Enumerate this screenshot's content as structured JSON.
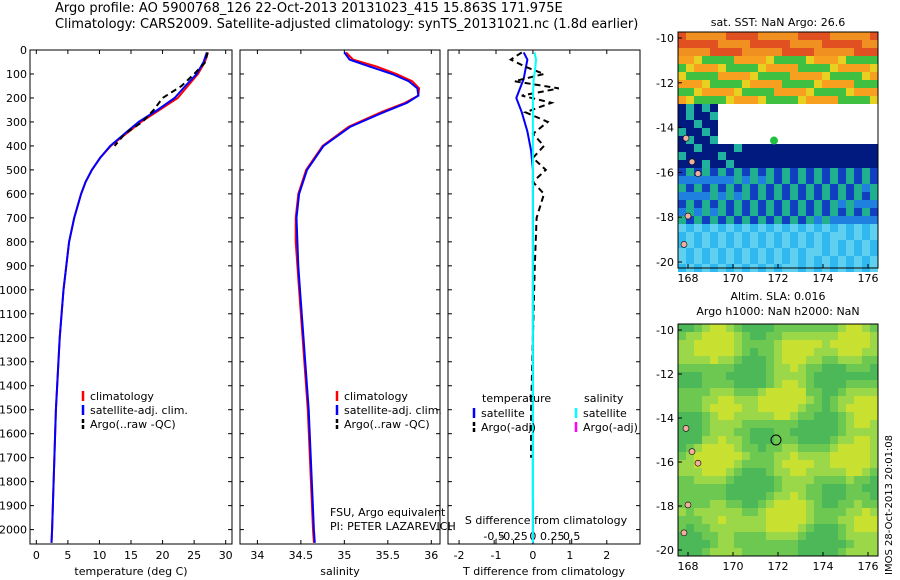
{
  "header": {
    "line1": "Argo profile: AO 5900768_126 22-Oct-2013 20131023_415 15.863S 171.975E",
    "line2": "Climatology: CARS2009. Satellite-adjusted climatology: synTS_20131021.nc (1.8d earlier)"
  },
  "colors": {
    "climatology": "#ff0000",
    "satellite": "#0000ff",
    "argo": "#000000",
    "sal_satellite": "#00ffff",
    "sal_argo": "#ff00ff"
  },
  "depth_axis": {
    "ticks": [
      0,
      100,
      200,
      300,
      400,
      500,
      600,
      700,
      800,
      900,
      1000,
      1100,
      1200,
      1300,
      1400,
      1500,
      1600,
      1700,
      1800,
      1900,
      2000
    ],
    "ylim": [
      0,
      2060
    ]
  },
  "chart_data": [
    {
      "type": "line",
      "xlabel": "temperature (deg C)",
      "xlim": [
        -1,
        31
      ],
      "xticks": [
        0,
        5,
        10,
        15,
        20,
        25,
        30
      ],
      "legend": {
        "position": "lower-left",
        "entries": [
          "climatology",
          "satellite-adj. clim.",
          "Argo(..raw -QC)"
        ]
      },
      "series": [
        {
          "name": "climatology",
          "color": "#ff0000",
          "depth": [
            10,
            50,
            100,
            150,
            200,
            250,
            300,
            400,
            450,
            500,
            550,
            600,
            700,
            800,
            1000,
            1200,
            1500,
            2000,
            2055
          ],
          "values": [
            27.2,
            26.7,
            25.6,
            24.0,
            22.4,
            19.5,
            16.6,
            11.8,
            10.1,
            8.8,
            7.8,
            7.1,
            6.0,
            5.2,
            4.3,
            3.7,
            3.1,
            2.5,
            2.4
          ]
        },
        {
          "name": "satellite-adj. clim.",
          "color": "#0000ff",
          "depth": [
            10,
            50,
            100,
            150,
            200,
            250,
            300,
            400,
            450,
            500,
            550,
            600,
            700,
            800,
            1000,
            1200,
            1500,
            2000,
            2055
          ],
          "values": [
            27.0,
            26.5,
            25.4,
            23.6,
            21.9,
            19.2,
            16.2,
            11.7,
            10.1,
            8.8,
            7.8,
            7.1,
            6.0,
            5.2,
            4.3,
            3.7,
            3.1,
            2.5,
            2.4
          ]
        },
        {
          "name": "Argo(..raw -QC)",
          "color": "#000000",
          "dash": true,
          "depth": [
            10,
            50,
            100,
            150,
            200,
            250,
            300,
            350,
            400
          ],
          "values": [
            27.1,
            26.8,
            25.0,
            23.0,
            20.0,
            18.6,
            16.8,
            14.0,
            12.4
          ]
        }
      ]
    },
    {
      "type": "line",
      "xlabel": "salinity",
      "xlim": [
        33.8,
        36.1
      ],
      "xticks": [
        34,
        34.5,
        35,
        35.5,
        36
      ],
      "xticklabels": [
        "34",
        "34.5",
        "35",
        "35.5",
        "36"
      ],
      "legend": {
        "position": "lower-left",
        "entries": [
          "climatology",
          "satellite-adj. clim.",
          "Argo(..raw -QC)"
        ]
      },
      "annotation": [
        "FSU, Argo equivalent",
        "PI: PETER LAZAREVICH"
      ],
      "series": [
        {
          "name": "climatology",
          "color": "#ff0000",
          "depth": [
            10,
            40,
            70,
            100,
            130,
            160,
            190,
            220,
            260,
            320,
            400,
            500,
            600,
            700,
            800,
            900,
            1000,
            1200,
            1500,
            2000,
            2055
          ],
          "values": [
            35.02,
            35.1,
            35.38,
            35.6,
            35.78,
            35.86,
            35.85,
            35.7,
            35.42,
            35.05,
            34.75,
            34.56,
            34.47,
            34.44,
            34.44,
            34.46,
            34.48,
            34.52,
            34.58,
            34.64,
            34.65
          ]
        },
        {
          "name": "satellite-adj. clim.",
          "color": "#0000ff",
          "depth": [
            10,
            40,
            70,
            100,
            130,
            160,
            190,
            220,
            260,
            320,
            400,
            500,
            600,
            700,
            800,
            900,
            1000,
            1200,
            1500,
            2000,
            2055
          ],
          "values": [
            35.0,
            35.06,
            35.3,
            35.55,
            35.74,
            35.84,
            35.85,
            35.72,
            35.45,
            35.07,
            34.76,
            34.57,
            34.48,
            34.45,
            34.46,
            34.47,
            34.49,
            34.53,
            34.59,
            34.65,
            34.66
          ]
        }
      ]
    },
    {
      "type": "line",
      "xlabel": "T difference from climatology",
      "xlabel2": "S difference from climatology",
      "xlim": [
        -2.3,
        2.9
      ],
      "xticks": [
        -2,
        -1,
        0,
        1,
        2
      ],
      "xticklabels": [
        "-2",
        "-1",
        "0",
        "1",
        "2"
      ],
      "sticks": [
        -0.5,
        -0.25,
        0,
        0.25,
        0.5
      ],
      "sticklabels": [
        "-0.5",
        "-0.25",
        "0",
        "0.25",
        "0.5"
      ],
      "legend": {
        "position": "lower-left",
        "temperature": {
          "title": "temperature",
          "entries": [
            "satellite",
            "Argo(-adj)"
          ]
        },
        "salinity": {
          "title": "salinity",
          "entries": [
            "satellite",
            "Argo(-adj)"
          ]
        }
      },
      "series": [
        {
          "name": "satellite",
          "group": "temperature",
          "color": "#0000ff",
          "depth": [
            10,
            40,
            80,
            120,
            160,
            200,
            260,
            340,
            420,
            500,
            600,
            800,
            1000,
            1500,
            2000,
            2055
          ],
          "values": [
            -0.25,
            -0.15,
            -0.2,
            -0.25,
            -0.35,
            -0.45,
            -0.3,
            -0.15,
            -0.05,
            0,
            0,
            0,
            0,
            0,
            0,
            0
          ]
        },
        {
          "name": "Argo(-adj)",
          "group": "temperature",
          "color": "#000000",
          "dash": true,
          "depth": [
            10,
            40,
            70,
            100,
            130,
            160,
            190,
            220,
            260,
            300,
            350,
            400,
            450,
            500,
            550,
            600,
            700,
            900,
            1200,
            1500,
            1700
          ],
          "values": [
            -0.3,
            -0.6,
            -0.2,
            0.3,
            -0.5,
            0.7,
            -0.3,
            0.5,
            -0.2,
            0.4,
            0.0,
            0.3,
            0.0,
            0.35,
            0.0,
            0.3,
            0.1,
            0.05,
            0.0,
            -0.05,
            -0.05
          ]
        },
        {
          "name": "satellite",
          "group": "salinity",
          "color": "#00ffff",
          "depth": [
            10,
            40,
            80,
            120,
            200,
            300,
            400,
            500,
            600,
            800,
            1000,
            1500,
            2000,
            2055
          ],
          "values": [
            0.02,
            0.04,
            0.03,
            0.01,
            0.0,
            0.0,
            0.0,
            0.0,
            0.0,
            0.0,
            0.0,
            0.0,
            0.0,
            0.0
          ]
        }
      ]
    }
  ],
  "maps": {
    "sst": {
      "title": "sat. SST: NaN Argo: 26.6",
      "xticks": [
        168,
        170,
        172,
        174,
        176
      ],
      "yticks": [
        -10,
        -12,
        -14,
        -16,
        -18,
        -20
      ]
    },
    "sla": {
      "title1": "Altim. SLA: 0.016",
      "title2": "Argo h1000: NaN h2000: NaN",
      "xticks": [
        168,
        170,
        172,
        174,
        176
      ],
      "yticks": [
        -10,
        -12,
        -14,
        -16,
        -18,
        -20
      ]
    }
  },
  "stamp": "IMOS 28-Oct-2013 20:01:08"
}
